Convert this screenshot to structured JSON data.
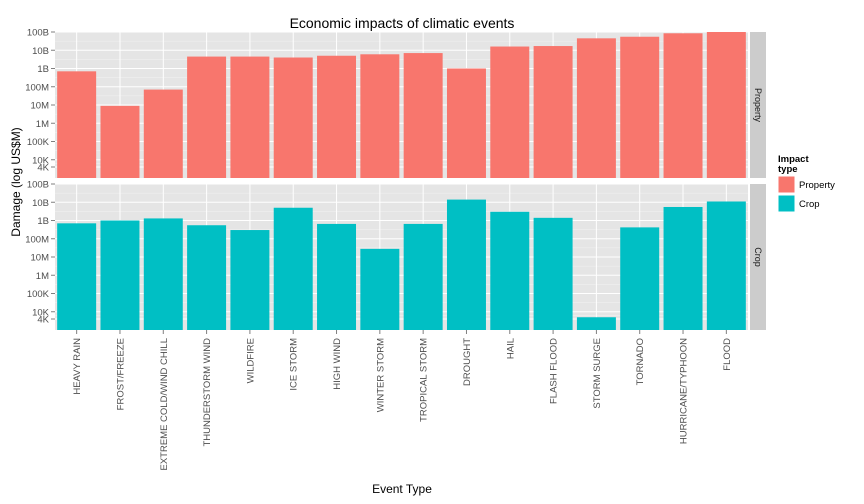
{
  "chart_data": {
    "type": "bar",
    "title": "Economic impacts of climatic events",
    "xlabel": "Event Type",
    "ylabel": "Damage (log US$M)",
    "y_scale": "log10",
    "ylim": [
      1000,
      100000000000
    ],
    "y_ticks": [
      {
        "value": 4000,
        "label": "4K"
      },
      {
        "value": 10000,
        "label": "10K"
      },
      {
        "value": 100000,
        "label": "100K"
      },
      {
        "value": 1000000,
        "label": "1M"
      },
      {
        "value": 10000000,
        "label": "10M"
      },
      {
        "value": 100000000,
        "label": "100M"
      },
      {
        "value": 1000000000,
        "label": "1B"
      },
      {
        "value": 10000000000,
        "label": "10B"
      },
      {
        "value": 100000000000,
        "label": "100B"
      }
    ],
    "categories": [
      "HEAVY RAIN",
      "FROST/FREEZE",
      "EXTREME COLD/WIND CHILL",
      "THUNDERSTORM WIND",
      "WILDFIRE",
      "ICE STORM",
      "HIGH WIND",
      "WINTER STORM",
      "TROPICAL STORM",
      "DROUGHT",
      "HAIL",
      "FLASH FLOOD",
      "STORM SURGE",
      "TORNADO",
      "HURRICANE/TYPHOON",
      "FLOOD"
    ],
    "series": [
      {
        "name": "Property",
        "color": "#F8766D",
        "values": [
          700000000,
          9000000,
          70000000,
          4500000000,
          4500000000,
          4000000000,
          5000000000,
          6000000000,
          7000000000,
          1000000000,
          16000000000,
          17000000000,
          45000000000,
          55000000000,
          85000000000,
          100000000000
        ]
      },
      {
        "name": "Crop",
        "color": "#00BFC4",
        "values": [
          700000000,
          1000000000,
          1300000000,
          550000000,
          300000000,
          5000000000,
          650000000,
          28000000,
          650000000,
          14000000000,
          3000000000,
          1400000000,
          5000,
          420000000,
          5500000000,
          11000000000
        ]
      }
    ],
    "legend": {
      "title": "Impact type",
      "title_lines": [
        "Impact",
        "type"
      ],
      "position": "right",
      "entries": [
        "Property",
        "Crop"
      ]
    },
    "facets": [
      "Property",
      "Crop"
    ],
    "grid": true
  }
}
